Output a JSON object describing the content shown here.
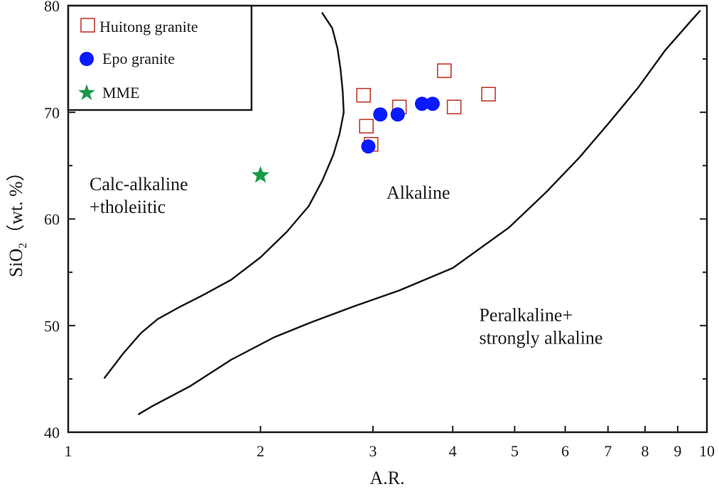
{
  "chart_data": {
    "type": "scatter",
    "xlabel": "A.R.",
    "ylabel_main": "SiO",
    "ylabel_sub": "2",
    "ylabel_rest": "（wt. %）",
    "x_scale": "log",
    "xlim": [
      1,
      10
    ],
    "ylim": [
      40,
      80
    ],
    "x_ticks": [
      1,
      2,
      3,
      4,
      5,
      6,
      7,
      8,
      9,
      10
    ],
    "x_tick_labels": [
      "1",
      "2",
      "3",
      "4",
      "5",
      "6",
      "7",
      "8",
      "9",
      "10"
    ],
    "y_ticks": [
      40,
      50,
      60,
      70,
      80
    ],
    "y_tick_labels": [
      "40",
      "50",
      "60",
      "70",
      "80"
    ],
    "y_minor_ticks": [
      45,
      55,
      65,
      75
    ],
    "legend_placement": "top-left",
    "grid": false,
    "series": [
      {
        "name": "Huitong granite",
        "marker": "open-square",
        "color": "#c0392b",
        "points": [
          [
            2.9,
            71.6
          ],
          [
            2.93,
            68.7
          ],
          [
            2.98,
            67.0
          ],
          [
            3.3,
            70.5
          ],
          [
            3.88,
            73.9
          ],
          [
            4.02,
            70.5
          ],
          [
            4.55,
            71.7
          ]
        ]
      },
      {
        "name": "Epo granite",
        "marker": "filled-circle",
        "color": "#0a1aff",
        "points": [
          [
            2.95,
            66.8
          ],
          [
            3.08,
            69.8
          ],
          [
            3.28,
            69.8
          ],
          [
            3.58,
            70.8
          ],
          [
            3.72,
            70.8
          ]
        ]
      },
      {
        "name": "MME",
        "marker": "star",
        "color": "#1a9a4a",
        "points": [
          [
            2.0,
            64.1
          ]
        ]
      }
    ],
    "boundary_curves": [
      [
        [
          1.14,
          45.1
        ],
        [
          1.22,
          47.4
        ],
        [
          1.3,
          49.3
        ],
        [
          1.38,
          50.6
        ],
        [
          1.5,
          51.8
        ],
        [
          1.63,
          52.9
        ],
        [
          1.8,
          54.3
        ],
        [
          2.0,
          56.4
        ],
        [
          2.2,
          58.8
        ],
        [
          2.38,
          61.2
        ],
        [
          2.5,
          63.6
        ],
        [
          2.6,
          66.0
        ],
        [
          2.66,
          68.0
        ],
        [
          2.7,
          70.0
        ],
        [
          2.69,
          72.0
        ],
        [
          2.67,
          74.0
        ],
        [
          2.64,
          76.0
        ],
        [
          2.59,
          77.9
        ],
        [
          2.5,
          79.3
        ]
      ],
      [
        [
          1.29,
          41.7
        ],
        [
          1.35,
          42.4
        ],
        [
          1.55,
          44.3
        ],
        [
          1.8,
          46.8
        ],
        [
          2.1,
          48.9
        ],
        [
          2.4,
          50.3
        ],
        [
          2.8,
          51.8
        ],
        [
          3.3,
          53.3
        ],
        [
          4.0,
          55.4
        ],
        [
          4.9,
          59.2
        ],
        [
          5.6,
          62.5
        ],
        [
          6.3,
          65.7
        ],
        [
          7.0,
          68.9
        ],
        [
          7.8,
          72.3
        ],
        [
          8.6,
          75.8
        ],
        [
          9.45,
          78.6
        ],
        [
          9.75,
          79.5
        ]
      ]
    ],
    "region_labels": [
      {
        "lines": [
          "Calc-alkaline",
          "+tholeiitic"
        ],
        "x": 1.08,
        "y": 62.7
      },
      {
        "lines": [
          "Alkaline"
        ],
        "x": 3.15,
        "y": 61.9
      },
      {
        "lines": [
          "Peralkaline+",
          "strongly alkaline"
        ],
        "x": 4.4,
        "y": 50.4
      }
    ]
  }
}
